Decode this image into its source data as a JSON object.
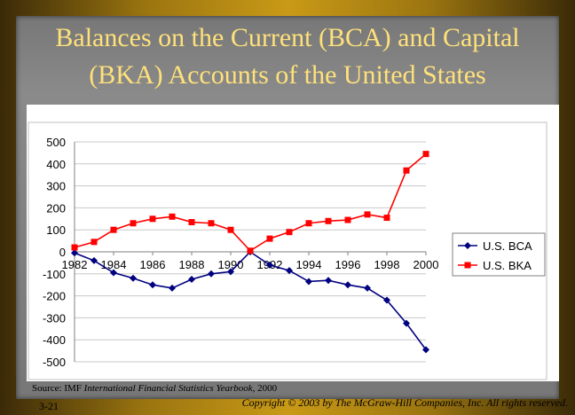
{
  "slide": {
    "title_line1": "Balances on the Current (BCA) and Capital",
    "title_line2": "(BKA) Accounts of the United States",
    "source_prefix": "Source: IMF ",
    "source_italic": "International Financial Statistics Yearbook,",
    "source_suffix": " 2000",
    "page_number": "3-21",
    "copyright": "Copyright © 2003 by The McGraw-Hill Companies, Inc. All rights reserved."
  },
  "colors": {
    "bca": "#000080",
    "bka": "#ff0000",
    "title": "#ffe17a"
  },
  "chart_data": {
    "type": "line",
    "title": "",
    "xlabel": "",
    "ylabel": "",
    "x": [
      1982,
      1983,
      1984,
      1985,
      1986,
      1987,
      1988,
      1989,
      1990,
      1991,
      1992,
      1993,
      1994,
      1995,
      1996,
      1997,
      1998,
      1999,
      2000
    ],
    "x_ticks": [
      "1982",
      "1984",
      "1986",
      "1988",
      "1990",
      "1992",
      "1994",
      "1996",
      "1998",
      "2000"
    ],
    "ylim": [
      -500,
      500
    ],
    "y_ticks": [
      "500",
      "400",
      "300",
      "200",
      "100",
      "0",
      "-100",
      "-200",
      "-300",
      "-400",
      "-500"
    ],
    "grid": true,
    "legend_position": "right",
    "series": [
      {
        "name": "U.S. BCA",
        "marker": "diamond",
        "values": [
          -5,
          -40,
          -95,
          -120,
          -150,
          -165,
          -125,
          -100,
          -90,
          0,
          -60,
          -85,
          -135,
          -130,
          -150,
          -165,
          -220,
          -325,
          -445
        ]
      },
      {
        "name": "U.S. BKA",
        "marker": "square",
        "values": [
          20,
          45,
          100,
          130,
          150,
          160,
          135,
          130,
          100,
          5,
          60,
          90,
          130,
          140,
          145,
          170,
          155,
          370,
          445
        ]
      }
    ]
  }
}
